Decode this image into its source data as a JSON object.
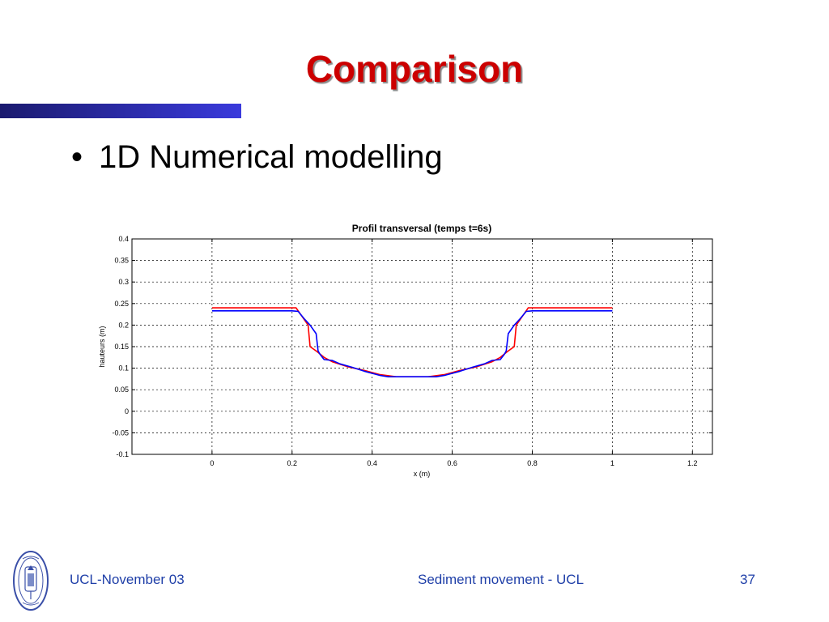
{
  "slide": {
    "title": "Comparison",
    "bullet": "1D Numerical modelling"
  },
  "footer": {
    "left": "UCL-November 03",
    "center": "Sediment movement - UCL",
    "page_number": "37"
  },
  "logo": {
    "icon": "ucl-seal-icon"
  },
  "colors": {
    "title": "#cc0000",
    "footer_text": "#1f3fa8",
    "bar_dark": "#1a1a6e",
    "bar_light": "#3a3adc",
    "series_red": "#ff0000",
    "series_blue": "#0000ff"
  },
  "chart_data": {
    "type": "line",
    "title": "Profil transversal (temps t=6s)",
    "xlabel": "x (m)",
    "ylabel": "hauteurs (m)",
    "xlim": [
      -0.2,
      1.25
    ],
    "ylim": [
      -0.1,
      0.4
    ],
    "x_ticks": [
      0,
      0.2,
      0.4,
      0.6,
      0.8,
      1,
      1.2
    ],
    "x_tick_labels": [
      "0",
      "0.2",
      "0.4",
      "0.6",
      "0.8",
      "1",
      "1.2"
    ],
    "y_ticks": [
      -0.1,
      -0.05,
      0,
      0.05,
      0.1,
      0.15,
      0.2,
      0.25,
      0.3,
      0.35,
      0.4
    ],
    "y_tick_labels": [
      "-0.1",
      "-0.05",
      "0",
      "0.05",
      "0.1",
      "0.15",
      "0.2",
      "0.25",
      "0.3",
      "0.35",
      "0.4"
    ],
    "grid": true,
    "legend": "none",
    "series": [
      {
        "color": "#ff0000",
        "points": [
          [
            0,
            0.24
          ],
          [
            0.21,
            0.24
          ],
          [
            0.24,
            0.2
          ],
          [
            0.245,
            0.15
          ],
          [
            0.26,
            0.14
          ],
          [
            0.28,
            0.125
          ],
          [
            0.3,
            0.115
          ],
          [
            0.34,
            0.103
          ],
          [
            0.38,
            0.095
          ],
          [
            0.42,
            0.085
          ],
          [
            0.46,
            0.08
          ],
          [
            0.54,
            0.08
          ],
          [
            0.58,
            0.085
          ],
          [
            0.62,
            0.095
          ],
          [
            0.66,
            0.103
          ],
          [
            0.7,
            0.115
          ],
          [
            0.72,
            0.125
          ],
          [
            0.74,
            0.14
          ],
          [
            0.755,
            0.15
          ],
          [
            0.76,
            0.2
          ],
          [
            0.79,
            0.24
          ],
          [
            1,
            0.24
          ]
        ]
      },
      {
        "color": "#0000ff",
        "points": [
          [
            0,
            0.233
          ],
          [
            0.2,
            0.233
          ],
          [
            0.215,
            0.232
          ],
          [
            0.23,
            0.215
          ],
          [
            0.245,
            0.2
          ],
          [
            0.26,
            0.18
          ],
          [
            0.265,
            0.14
          ],
          [
            0.27,
            0.132
          ],
          [
            0.28,
            0.12
          ],
          [
            0.3,
            0.118
          ],
          [
            0.32,
            0.11
          ],
          [
            0.35,
            0.102
          ],
          [
            0.38,
            0.093
          ],
          [
            0.42,
            0.083
          ],
          [
            0.44,
            0.08
          ],
          [
            0.56,
            0.08
          ],
          [
            0.58,
            0.083
          ],
          [
            0.62,
            0.093
          ],
          [
            0.65,
            0.102
          ],
          [
            0.68,
            0.11
          ],
          [
            0.7,
            0.118
          ],
          [
            0.72,
            0.12
          ],
          [
            0.73,
            0.132
          ],
          [
            0.735,
            0.14
          ],
          [
            0.74,
            0.18
          ],
          [
            0.755,
            0.2
          ],
          [
            0.77,
            0.215
          ],
          [
            0.785,
            0.232
          ],
          [
            0.8,
            0.233
          ],
          [
            1,
            0.233
          ]
        ]
      }
    ]
  }
}
